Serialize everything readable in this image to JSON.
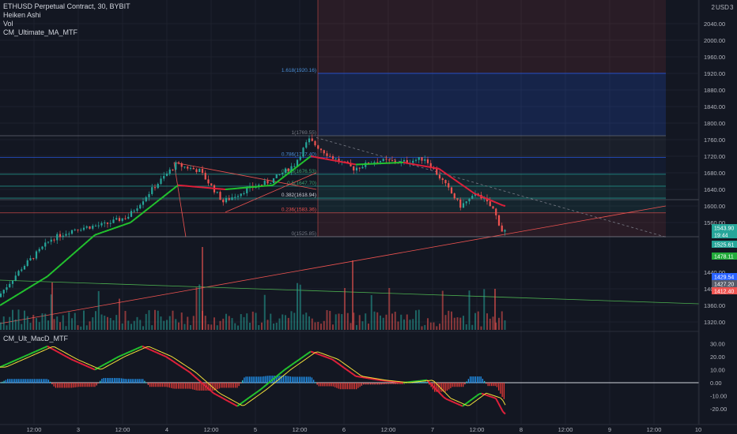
{
  "legend": {
    "symbol": "ETHUSD Perpetual Contract, 30, BYBIT",
    "indicators": [
      "Heiken Ashi",
      "Vol",
      "CM_Ultimate_MA_MTF"
    ]
  },
  "macd_title": "CM_Ult_MacD_MTF",
  "axis": {
    "currency": "USD",
    "corner_num": "2",
    "corner_num2": "3"
  },
  "price_badges": [
    {
      "label": "1543.90",
      "color": "#26a69a"
    },
    {
      "label": "19:44",
      "color": "#26a69a"
    },
    {
      "label": "1525.61",
      "color": "#26a69a"
    },
    {
      "label": "1478.11",
      "color": "#22ab3a"
    },
    {
      "label": "1429.54",
      "color": "#2962ff"
    },
    {
      "label": "1427.20",
      "color": "#555a68"
    },
    {
      "label": "1412.40",
      "color": "#ef5350"
    }
  ],
  "fib_labels": [
    {
      "text": "1.618(1920.16)",
      "color": "#4a90d9"
    },
    {
      "text": "1(1769.55)",
      "color": "#787b86"
    },
    {
      "text": "0.786(1717.40)",
      "color": "#4a90d9"
    },
    {
      "text": "0.618(1676.53)",
      "color": "#3aa070"
    },
    {
      "text": "0.5(1647.70)",
      "color": "#3aa070"
    },
    {
      "text": "0.382(1618.94)",
      "color": "#d1d4dc"
    },
    {
      "text": "0.236(1583.36)",
      "color": "#ef5350"
    },
    {
      "text": "0(1525.85)",
      "color": "#787b86"
    }
  ],
  "chart_data": {
    "type": "candlestick",
    "price_axis": {
      "ticks": [
        2040,
        2000,
        1960,
        1920,
        1880,
        1840,
        1800,
        1760,
        1720,
        1680,
        1640,
        1600,
        1560,
        1440,
        1400,
        1360,
        1320
      ],
      "labels": [
        "2040.00",
        "2000.00",
        "1960.00",
        "1920.00",
        "1880.00",
        "1840.00",
        "1800.00",
        "1760.00",
        "1720.00",
        "1680.00",
        "1640.00",
        "1600.00",
        "1560.00",
        "1440.00",
        "1400.00",
        "1360.00",
        "1320.00"
      ]
    },
    "macd_axis": {
      "ticks": [
        30,
        20,
        10,
        0,
        -10,
        -20
      ],
      "labels": [
        "30.00",
        "20.00",
        "10.00",
        "0.00",
        "-10.00",
        "-20.00"
      ]
    },
    "time_axis": {
      "labels": [
        "12:00",
        "3",
        "12:00",
        "4",
        "12:00",
        "5",
        "12:00",
        "6",
        "12:00",
        "7",
        "12:00",
        "8",
        "12:00",
        "9",
        "12:00",
        "10"
      ]
    },
    "fib_levels": [
      {
        "ratio": 1.618,
        "price": 1920.16
      },
      {
        "ratio": 1,
        "price": 1769.55
      },
      {
        "ratio": 0.786,
        "price": 1717.4
      },
      {
        "ratio": 0.618,
        "price": 1676.53
      },
      {
        "ratio": 0.5,
        "price": 1647.7
      },
      {
        "ratio": 0.382,
        "price": 1618.94
      },
      {
        "ratio": 0.236,
        "price": 1583.36
      },
      {
        "ratio": 0,
        "price": 1525.85
      }
    ],
    "key_prices": [
      {
        "x": 0,
        "price": 1380
      },
      {
        "x": 20,
        "price": 1450
      },
      {
        "x": 45,
        "price": 1520
      },
      {
        "x": 65,
        "price": 1545
      },
      {
        "x": 90,
        "price": 1555
      },
      {
        "x": 110,
        "price": 1575
      },
      {
        "x": 130,
        "price": 1640
      },
      {
        "x": 150,
        "price": 1700
      },
      {
        "x": 170,
        "price": 1685
      },
      {
        "x": 190,
        "price": 1610
      },
      {
        "x": 210,
        "price": 1640
      },
      {
        "x": 230,
        "price": 1660
      },
      {
        "x": 250,
        "price": 1700
      },
      {
        "x": 262,
        "price": 1760
      },
      {
        "x": 280,
        "price": 1720
      },
      {
        "x": 300,
        "price": 1690
      },
      {
        "x": 320,
        "price": 1710
      },
      {
        "x": 340,
        "price": 1705
      },
      {
        "x": 360,
        "price": 1715
      },
      {
        "x": 375,
        "price": 1660
      },
      {
        "x": 390,
        "price": 1600
      },
      {
        "x": 405,
        "price": 1630
      },
      {
        "x": 418,
        "price": 1590
      },
      {
        "x": 425,
        "price": 1540
      }
    ],
    "ma_points": [
      {
        "x": 0,
        "price": 1360
      },
      {
        "x": 40,
        "price": 1430
      },
      {
        "x": 80,
        "price": 1530
      },
      {
        "x": 110,
        "price": 1560
      },
      {
        "x": 150,
        "price": 1650
      },
      {
        "x": 190,
        "price": 1640
      },
      {
        "x": 230,
        "price": 1650
      },
      {
        "x": 262,
        "price": 1720
      },
      {
        "x": 300,
        "price": 1700
      },
      {
        "x": 340,
        "price": 1705
      },
      {
        "x": 370,
        "price": 1690
      },
      {
        "x": 400,
        "price": 1630
      },
      {
        "x": 425,
        "price": 1600
      }
    ],
    "macd_line": [
      {
        "x": 0,
        "v": 12
      },
      {
        "x": 20,
        "v": 20
      },
      {
        "x": 40,
        "v": 28
      },
      {
        "x": 60,
        "v": 18
      },
      {
        "x": 80,
        "v": 10
      },
      {
        "x": 100,
        "v": 20
      },
      {
        "x": 120,
        "v": 28
      },
      {
        "x": 140,
        "v": 20
      },
      {
        "x": 160,
        "v": 8
      },
      {
        "x": 180,
        "v": -8
      },
      {
        "x": 200,
        "v": -18
      },
      {
        "x": 220,
        "v": -5
      },
      {
        "x": 240,
        "v": 10
      },
      {
        "x": 262,
        "v": 24
      },
      {
        "x": 280,
        "v": 18
      },
      {
        "x": 300,
        "v": 5
      },
      {
        "x": 320,
        "v": 2
      },
      {
        "x": 340,
        "v": 0
      },
      {
        "x": 360,
        "v": 2
      },
      {
        "x": 375,
        "v": -12
      },
      {
        "x": 390,
        "v": -18
      },
      {
        "x": 405,
        "v": -8
      },
      {
        "x": 418,
        "v": -12
      },
      {
        "x": 425,
        "v": -24
      }
    ]
  }
}
